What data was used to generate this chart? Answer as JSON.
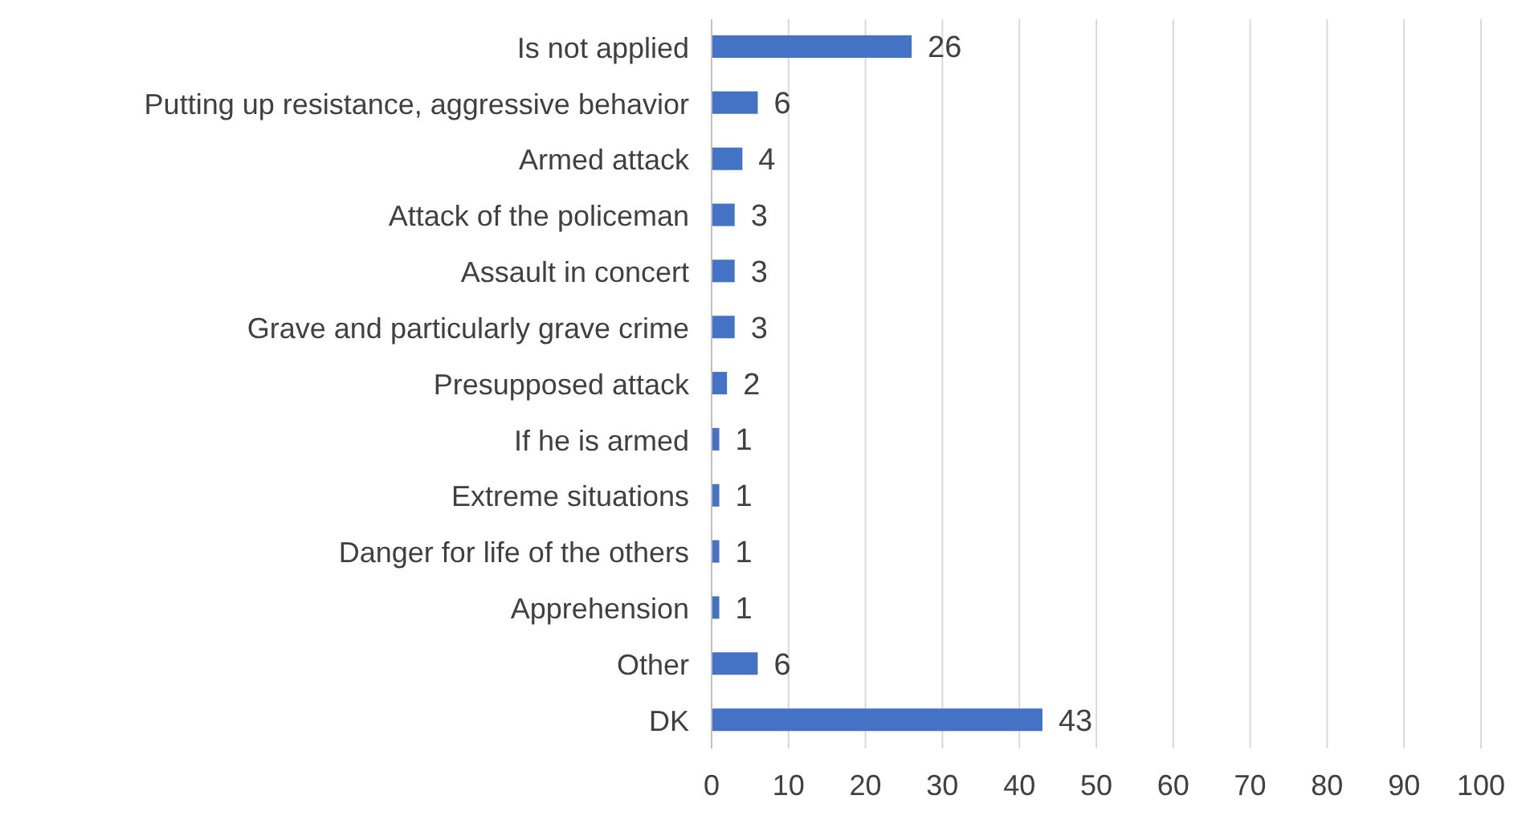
{
  "chart_data": {
    "type": "bar",
    "orientation": "horizontal",
    "categories": [
      "Is not applied",
      "Putting up resistance, aggressive behavior",
      "Armed attack",
      "Attack of the policeman",
      "Assault in concert",
      "Grave and particularly grave crime",
      "Presupposed attack",
      "If he is armed",
      "Extreme situations",
      "Danger for life of the others",
      "Apprehension",
      "Other",
      "DK"
    ],
    "values": [
      26,
      6,
      4,
      3,
      3,
      3,
      2,
      1,
      1,
      1,
      1,
      6,
      43
    ],
    "color": "#4472c4",
    "xlim": [
      0,
      100
    ],
    "xticks": [
      0,
      10,
      20,
      30,
      40,
      50,
      60,
      70,
      80,
      90,
      100
    ],
    "grid": "x",
    "data_labels": true
  }
}
